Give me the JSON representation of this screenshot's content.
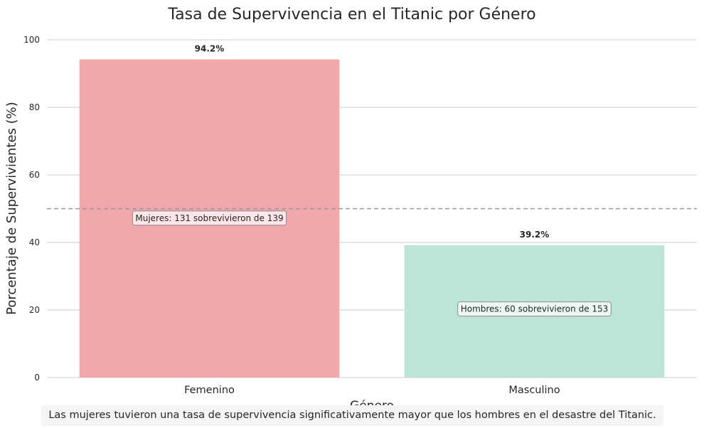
{
  "chart_data": {
    "type": "bar",
    "title": "Tasa de Supervivencia en el Titanic por Género",
    "xlabel": "Género",
    "ylabel": "Porcentaje de Supervivientes (%)",
    "categories": [
      "Femenino",
      "Masculino"
    ],
    "values": [
      94.2,
      39.2
    ],
    "value_labels": [
      "94.2%",
      "39.2%"
    ],
    "colors": [
      "#f2a7ad",
      "#bde5d6"
    ],
    "ylim": [
      0,
      100
    ],
    "yticks": [
      0,
      20,
      40,
      60,
      80,
      100
    ],
    "grid": true,
    "reference_line": {
      "y": 50,
      "style": "dashed",
      "color": "#999999"
    },
    "annotations": [
      {
        "category": "Femenino",
        "y": 47.2,
        "text": "Mujeres: 131 sobrevivieron de 139"
      },
      {
        "category": "Masculino",
        "y": 20.3,
        "text": "Hombres: 60 sobrevivieron de 153"
      }
    ]
  },
  "caption": "Las mujeres tuvieron una tasa de supervivencia significativamente mayor que los hombres en el desastre del Titanic."
}
